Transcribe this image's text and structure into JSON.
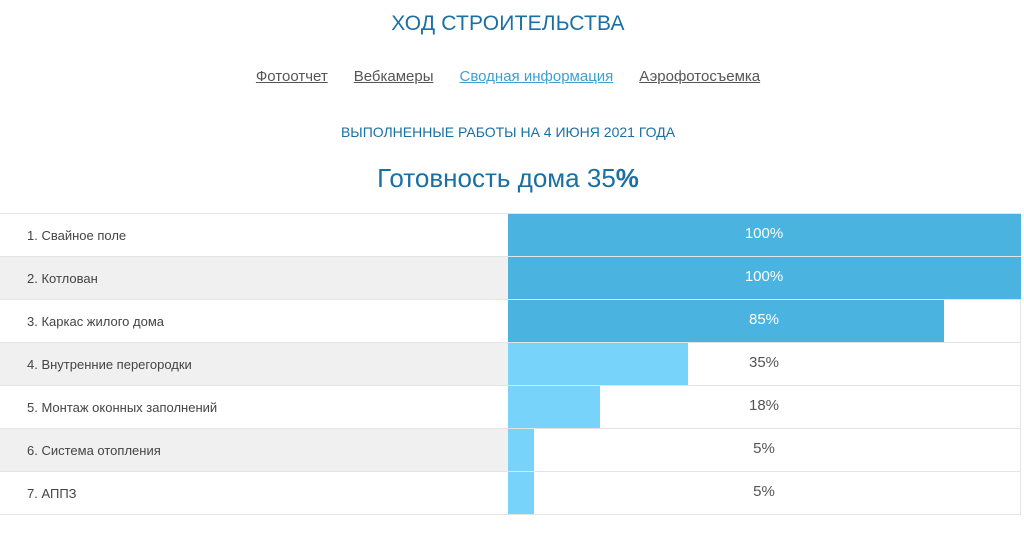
{
  "header": {
    "title": "ХОД СТРОИТЕЛЬСТВА"
  },
  "nav": {
    "items": [
      {
        "label": "Фотоотчет",
        "active": false
      },
      {
        "label": "Вебкамеры",
        "active": false
      },
      {
        "label": "Сводная информация",
        "active": true
      },
      {
        "label": "Аэрофотосъемка",
        "active": false
      }
    ]
  },
  "summary": {
    "subtitle": "ВЫПОЛНЕННЫЕ РАБОТЫ НА 4 ИЮНЯ 2021 ГОДА",
    "readiness_label": "Готовность дома 35",
    "readiness_sign": "%"
  },
  "colors": {
    "complete": "#4ab3e0",
    "in_progress": "#78d3fa",
    "heading": "#1a6fa3"
  },
  "tasks": [
    {
      "label": "1. Свайное поле",
      "percent": 100,
      "percent_label": "100%"
    },
    {
      "label": "2. Котлован",
      "percent": 100,
      "percent_label": "100%"
    },
    {
      "label": "3. Каркас жилого дома",
      "percent": 85,
      "percent_label": "85%"
    },
    {
      "label": "4. Внутренние перегородки",
      "percent": 35,
      "percent_label": "35%"
    },
    {
      "label": "5. Монтаж оконных заполнений",
      "percent": 18,
      "percent_label": "18%"
    },
    {
      "label": "6. Система отопления",
      "percent": 5,
      "percent_label": "5%"
    },
    {
      "label": "7. АППЗ",
      "percent": 5,
      "percent_label": "5%"
    }
  ]
}
